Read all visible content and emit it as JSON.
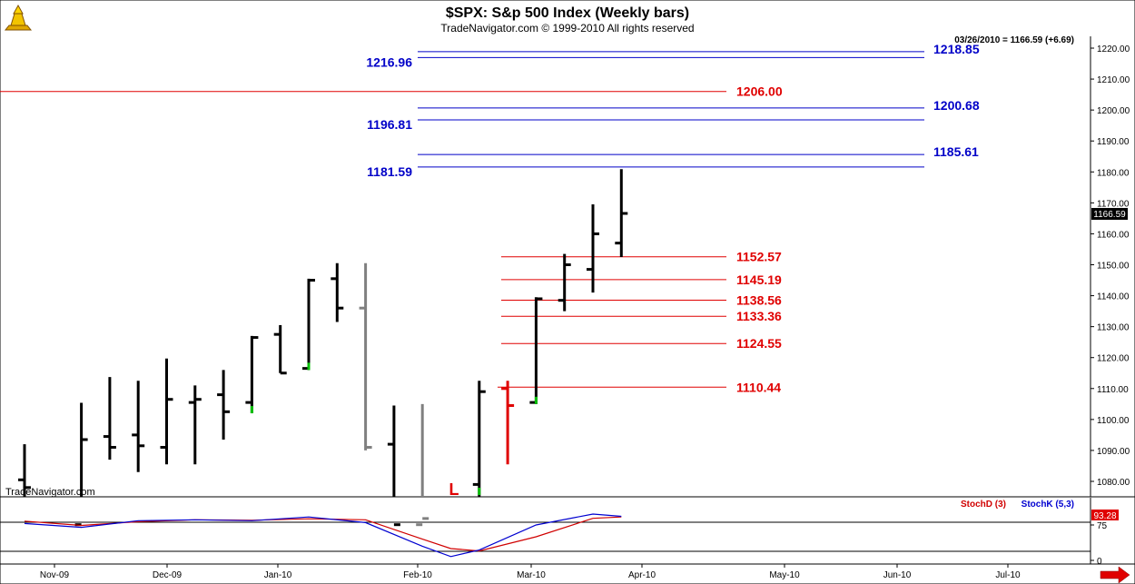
{
  "header": {
    "title": "$SPX:  S&p 500 Index  (Weekly bars)",
    "copyright": "TradeNavigator.com © 1999-2010 All rights reserved",
    "last_quote": "03/26/2010 = 1166.59 (+6.69)",
    "current_price_tag": "1166.59",
    "watermark": "TradeNavigator.com"
  },
  "colors": {
    "bar_black": "#000000",
    "bar_gray": "#808080",
    "bar_red": "#e00000",
    "tick_green": "#00c000",
    "level_blue": "#0000c8",
    "level_red": "#e00000",
    "stochD_red": "#d00000",
    "stochK_blue": "#0000d0"
  },
  "chart_data": [
    {
      "type": "bar",
      "subtype": "ohlc",
      "title": "$SPX:  S&p 500 Index  (Weekly bars)",
      "ylim": [
        1075,
        1225
      ],
      "y_ticks": [
        "1080.00",
        "1090.00",
        "1100.00",
        "1110.00",
        "1120.00",
        "1130.00",
        "1140.00",
        "1150.00",
        "1160.00",
        "1170.00",
        "1180.00",
        "1190.00",
        "1200.00",
        "1210.00",
        "1220.00"
      ],
      "x_ticks": [
        "Nov-09",
        "Dec-09",
        "Jan-10",
        "Feb-10",
        "Mar-10",
        "Apr-10",
        "May-10",
        "Jun-10",
        "Jul-10"
      ],
      "bars": [
        {
          "week": 0,
          "open": 1080.5,
          "high": 1092,
          "low": 1066,
          "close": 1078,
          "color": "black"
        },
        {
          "week": 2,
          "open": 1066,
          "high": 1105.4,
          "low": 1066,
          "close": 1093.5,
          "color": "black"
        },
        {
          "week": 3,
          "open": 1094.5,
          "high": 1113.7,
          "low": 1087,
          "close": 1091,
          "color": "black"
        },
        {
          "week": 4,
          "open": 1095,
          "high": 1112.5,
          "low": 1083,
          "close": 1091.5,
          "color": "black"
        },
        {
          "week": 5,
          "open": 1091,
          "high": 1119.7,
          "low": 1085.5,
          "close": 1106.5,
          "color": "black"
        },
        {
          "week": 6,
          "open": 1105.5,
          "high": 1111,
          "low": 1085.5,
          "close": 1106.5,
          "color": "black"
        },
        {
          "week": 7,
          "open": 1108,
          "high": 1116,
          "low": 1093.5,
          "close": 1102.5,
          "color": "black"
        },
        {
          "week": 8,
          "open": 1105.5,
          "high": 1127,
          "low": 1102,
          "close": 1126.5,
          "color": "black",
          "green_low": true
        },
        {
          "week": 9,
          "open": 1127.5,
          "high": 1130.5,
          "low": 1115,
          "close": 1115,
          "color": "black"
        },
        {
          "week": 10,
          "open": 1116.5,
          "high": 1145.5,
          "low": 1116,
          "close": 1145,
          "color": "black",
          "green_low": true
        },
        {
          "week": 11,
          "open": 1145.5,
          "high": 1150.5,
          "low": 1131.5,
          "close": 1136,
          "color": "black"
        },
        {
          "week": 12,
          "open": 1136,
          "high": 1150.5,
          "low": 1090,
          "close": 1091,
          "color": "gray"
        },
        {
          "week": 13,
          "open": 1092,
          "high": 1104.5,
          "low": 1044,
          "close": 1066,
          "color": "black"
        },
        {
          "week": 14,
          "open": 1066,
          "high": 1105,
          "low": 1044,
          "close": 1068,
          "color": "gray"
        },
        {
          "week": 16,
          "open": 1079,
          "high": 1112.5,
          "low": 1044,
          "close": 1109,
          "color": "black",
          "green_low": true
        },
        {
          "week": 17,
          "open": 1110,
          "high": 1112.5,
          "low": 1085.5,
          "close": 1104.5,
          "color": "red"
        },
        {
          "week": 18,
          "open": 1105.5,
          "high": 1139.5,
          "low": 1105,
          "close": 1139,
          "color": "black",
          "green_low": true
        },
        {
          "week": 19,
          "open": 1138.5,
          "high": 1153.5,
          "low": 1135,
          "close": 1150,
          "color": "black"
        },
        {
          "week": 20,
          "open": 1148.5,
          "high": 1169.5,
          "low": 1141,
          "close": 1160,
          "color": "black"
        },
        {
          "week": 21,
          "open": 1157,
          "high": 1180.9,
          "low": 1152.5,
          "close": 1166.59,
          "color": "black"
        }
      ],
      "levels": [
        {
          "label": "1218.85",
          "value": 1218.85,
          "color": "blue",
          "label_side": "right"
        },
        {
          "label": "1216.96",
          "value": 1216.96,
          "color": "blue",
          "label_side": "left"
        },
        {
          "label": "1206.00",
          "value": 1206.0,
          "color": "red",
          "label_side": "right"
        },
        {
          "label": "1200.68",
          "value": 1200.68,
          "color": "blue",
          "label_side": "right"
        },
        {
          "label": "1196.81",
          "value": 1196.81,
          "color": "blue",
          "label_side": "left"
        },
        {
          "label": "1185.61",
          "value": 1185.61,
          "color": "blue",
          "label_side": "right"
        },
        {
          "label": "1181.59",
          "value": 1181.59,
          "color": "blue",
          "label_side": "left"
        },
        {
          "label": "1152.57",
          "value": 1152.57,
          "color": "red",
          "label_side": "right"
        },
        {
          "label": "1145.19",
          "value": 1145.19,
          "color": "red",
          "label_side": "right"
        },
        {
          "label": "1138.56",
          "value": 1138.56,
          "color": "red",
          "label_side": "right"
        },
        {
          "label": "1133.36",
          "value": 1133.36,
          "color": "red",
          "label_side": "right"
        },
        {
          "label": "1124.55",
          "value": 1124.55,
          "color": "red",
          "label_side": "right"
        },
        {
          "label": "1110.44",
          "value": 1110.44,
          "color": "red",
          "label_side": "right"
        }
      ],
      "marker": {
        "text": "L",
        "week": 15,
        "color": "red"
      }
    },
    {
      "type": "line",
      "title": "Stochastic",
      "ylim": [
        0,
        100
      ],
      "y_ticks": [
        "75",
        "0"
      ],
      "current_value_tag": "93.28",
      "legend": [
        "StochD (3)",
        "StochK (5,3)"
      ],
      "series": [
        {
          "name": "StochD (3)",
          "color": "red",
          "x": [
            0,
            2,
            4,
            6,
            8,
            10,
            12,
            14,
            15,
            16,
            18,
            20,
            21
          ],
          "values": [
            83,
            74,
            82,
            86,
            85,
            88,
            86,
            45,
            25,
            20,
            50,
            89,
            92
          ]
        },
        {
          "name": "StochK (5,3)",
          "color": "blue",
          "x": [
            0,
            2,
            4,
            6,
            8,
            10,
            12,
            14,
            15,
            16,
            18,
            20,
            21
          ],
          "values": [
            78,
            70,
            84,
            86,
            84,
            92,
            80,
            30,
            8,
            22,
            75,
            98,
            93.28
          ]
        }
      ]
    }
  ]
}
